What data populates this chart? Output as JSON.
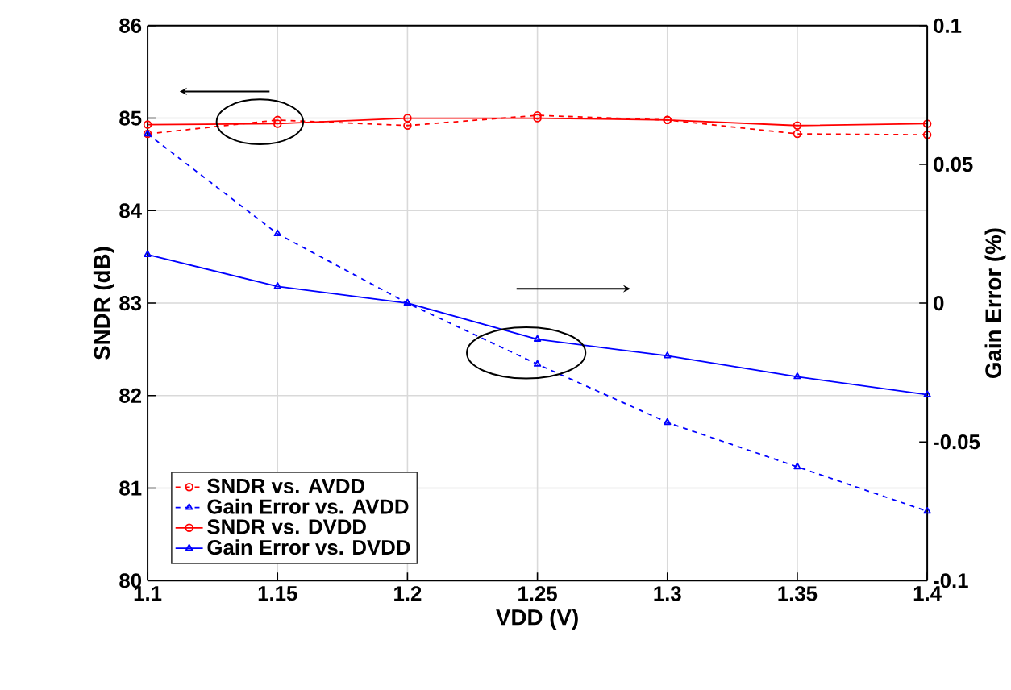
{
  "chart_data": {
    "type": "line",
    "xlabel": "VDD (V)",
    "ylabel": "SNDR (dB)",
    "y2label": "Gain Error (%)",
    "x": [
      1.1,
      1.15,
      1.2,
      1.25,
      1.3,
      1.35,
      1.4
    ],
    "xlim": [
      1.1,
      1.4
    ],
    "xticks": [
      1.1,
      1.15,
      1.2,
      1.25,
      1.3,
      1.35,
      1.4
    ],
    "ylim": [
      80,
      86
    ],
    "yticks": [
      80,
      81,
      82,
      83,
      84,
      85,
      86
    ],
    "y2lim": [
      -0.1,
      0.1
    ],
    "y2ticks": [
      -0.1,
      -0.05,
      0,
      0.05,
      0.1
    ],
    "grid": true,
    "legend": "bottom left",
    "series": [
      {
        "name": "SNDR vs. AVDD",
        "color": "#ff0000",
        "marker": "circle",
        "line_style": "dashed",
        "values": [
          84.83,
          84.98,
          84.92,
          85.03,
          84.98,
          84.83,
          84.82
        ]
      },
      {
        "name": "Gain Error vs. AVDD",
        "color": "#0000ff",
        "marker": "triangle",
        "line_style": "dashed",
        "axis": "y2",
        "values": [
          0.061,
          0.025,
          0,
          -0.022,
          -0.043,
          -0.059,
          -0.075
        ]
      },
      {
        "name": "SNDR vs. DVDD",
        "color": "#ff0000",
        "marker": "circle",
        "line_style": "solid",
        "values": [
          84.93,
          84.94,
          85.0,
          85.0,
          84.98,
          84.92,
          84.94
        ]
      },
      {
        "name": "Gain Error vs. DVDD",
        "color": "#0000ff",
        "marker": "triangle",
        "line_style": "solid",
        "axis": "y2",
        "values": [
          0.0175,
          0.006,
          0,
          -0.013,
          -0.019,
          -0.0265,
          -0.033
        ]
      }
    ]
  }
}
